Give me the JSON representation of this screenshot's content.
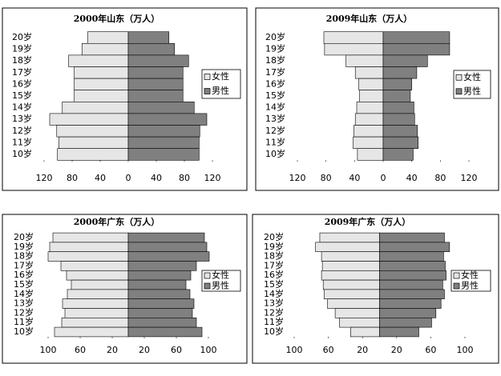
{
  "chart_data": [
    {
      "type": "pyramid",
      "title": "2000年山东（万人）",
      "categories": [
        "20岁",
        "19岁",
        "18岁",
        "17岁",
        "16岁",
        "15岁",
        "14岁",
        "13岁",
        "12岁",
        "11岁",
        "10岁"
      ],
      "series": [
        {
          "name": "女性",
          "color": "#e6e6e6",
          "values": [
            58,
            66,
            85,
            77,
            77,
            77,
            94,
            112,
            102,
            99,
            101
          ]
        },
        {
          "name": "男性",
          "color": "#808080",
          "values": [
            58,
            66,
            86,
            78,
            78,
            78,
            94,
            112,
            102,
            101,
            101
          ]
        }
      ],
      "xlim": [
        -120,
        120
      ],
      "xticks": [
        {
          "value": -120,
          "label": "120"
        },
        {
          "value": -80,
          "label": "80"
        },
        {
          "value": -40,
          "label": "40"
        },
        0,
        40,
        80,
        120
      ]
    },
    {
      "type": "pyramid",
      "title": "2009年山东（万人）",
      "categories": [
        "20岁",
        "19岁",
        "18岁",
        "17岁",
        "16岁",
        "15岁",
        "14岁",
        "13岁",
        "12岁",
        "11岁",
        "10岁"
      ],
      "series": [
        {
          "name": "女性",
          "color": "#e6e6e6",
          "values": [
            83,
            82,
            52,
            39,
            34,
            33,
            37,
            39,
            41,
            42,
            36
          ]
        },
        {
          "name": "男性",
          "color": "#808080",
          "values": [
            93,
            93,
            62,
            47,
            40,
            38,
            43,
            44,
            48,
            49,
            42
          ]
        }
      ],
      "xlim": [
        -120,
        120
      ],
      "xticks": [
        {
          "value": -120,
          "label": "120"
        },
        {
          "value": -80,
          "label": "80"
        },
        {
          "value": -40,
          "label": "40"
        },
        0,
        40,
        80,
        120
      ]
    },
    {
      "type": "pyramid",
      "title": "2000年广东（万人）",
      "categories": [
        "20岁",
        "19岁",
        "18岁",
        "17岁",
        "16岁",
        "15岁",
        "14岁",
        "13岁",
        "12岁",
        "11岁",
        "10岁"
      ],
      "series": [
        {
          "name": "女性",
          "color": "#e6e6e6",
          "values": [
            94,
            98,
            100,
            84,
            77,
            71,
            76,
            82,
            79,
            83,
            92
          ]
        },
        {
          "name": "男性",
          "color": "#808080",
          "values": [
            95,
            98,
            101,
            85,
            78,
            72,
            77,
            82,
            80,
            85,
            92
          ]
        }
      ],
      "xlim": [
        -100,
        100
      ],
      "xticks": [
        {
          "value": -100,
          "label": "100"
        },
        {
          "value": -60,
          "label": "60"
        },
        {
          "value": -20,
          "label": "20"
        },
        20,
        60,
        100
      ]
    },
    {
      "type": "pyramid",
      "title": "2009年广东（万人）",
      "categories": [
        "20岁",
        "19岁",
        "18岁",
        "17岁",
        "16岁",
        "15岁",
        "14岁",
        "13岁",
        "12岁",
        "11岁",
        "10岁"
      ],
      "series": [
        {
          "name": "女性",
          "color": "#e6e6e6",
          "values": [
            70,
            75,
            68,
            67,
            68,
            66,
            65,
            61,
            52,
            47,
            34
          ]
        },
        {
          "name": "男性",
          "color": "#808080",
          "values": [
            76,
            82,
            75,
            77,
            78,
            74,
            76,
            72,
            66,
            61,
            46
          ]
        }
      ],
      "xlim": [
        -100,
        100
      ],
      "xticks": [
        {
          "value": -100,
          "label": "100"
        },
        {
          "value": -60,
          "label": "60"
        },
        {
          "value": -20,
          "label": "20"
        },
        20,
        60,
        100
      ]
    }
  ]
}
